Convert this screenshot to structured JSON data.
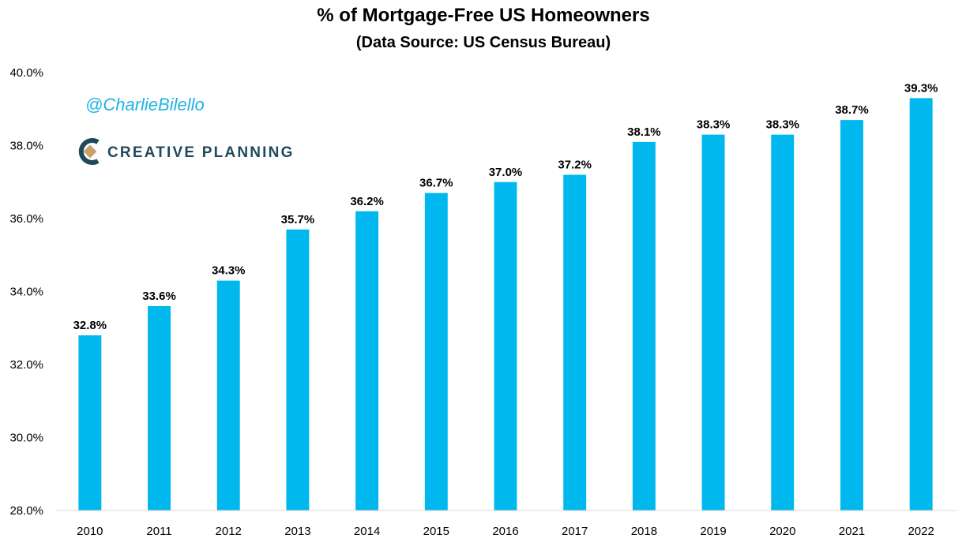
{
  "chart_data": {
    "type": "bar",
    "title": "% of Mortgage-Free US Homeowners",
    "subtitle": "(Data Source: US Census Bureau)",
    "categories": [
      "2010",
      "2011",
      "2012",
      "2013",
      "2014",
      "2015",
      "2016",
      "2017",
      "2018",
      "2019",
      "2020",
      "2021",
      "2022"
    ],
    "values": [
      32.8,
      33.6,
      34.3,
      35.7,
      36.2,
      36.7,
      37.0,
      37.2,
      38.1,
      38.3,
      38.3,
      38.7,
      39.3
    ],
    "data_labels": [
      "32.8%",
      "33.6%",
      "34.3%",
      "35.7%",
      "36.2%",
      "36.7%",
      "37.0%",
      "37.2%",
      "38.1%",
      "38.3%",
      "38.3%",
      "38.7%",
      "39.3%"
    ],
    "y_ticks": [
      28,
      30,
      32,
      34,
      36,
      38,
      40
    ],
    "y_tick_labels": [
      "28.0%",
      "30.0%",
      "32.0%",
      "34.0%",
      "36.0%",
      "38.0%",
      "40.0%"
    ],
    "ylim": [
      28,
      40
    ],
    "grid": false,
    "legend": "none",
    "bar_color": "#00b8ee"
  },
  "watermark": {
    "handle": "@CharlieBilello",
    "brand": "CREATIVE PLANNING",
    "handle_color": "#1fb3e5",
    "brand_color": "#1f4a5c",
    "logo_accent_color": "#c9a26b"
  }
}
